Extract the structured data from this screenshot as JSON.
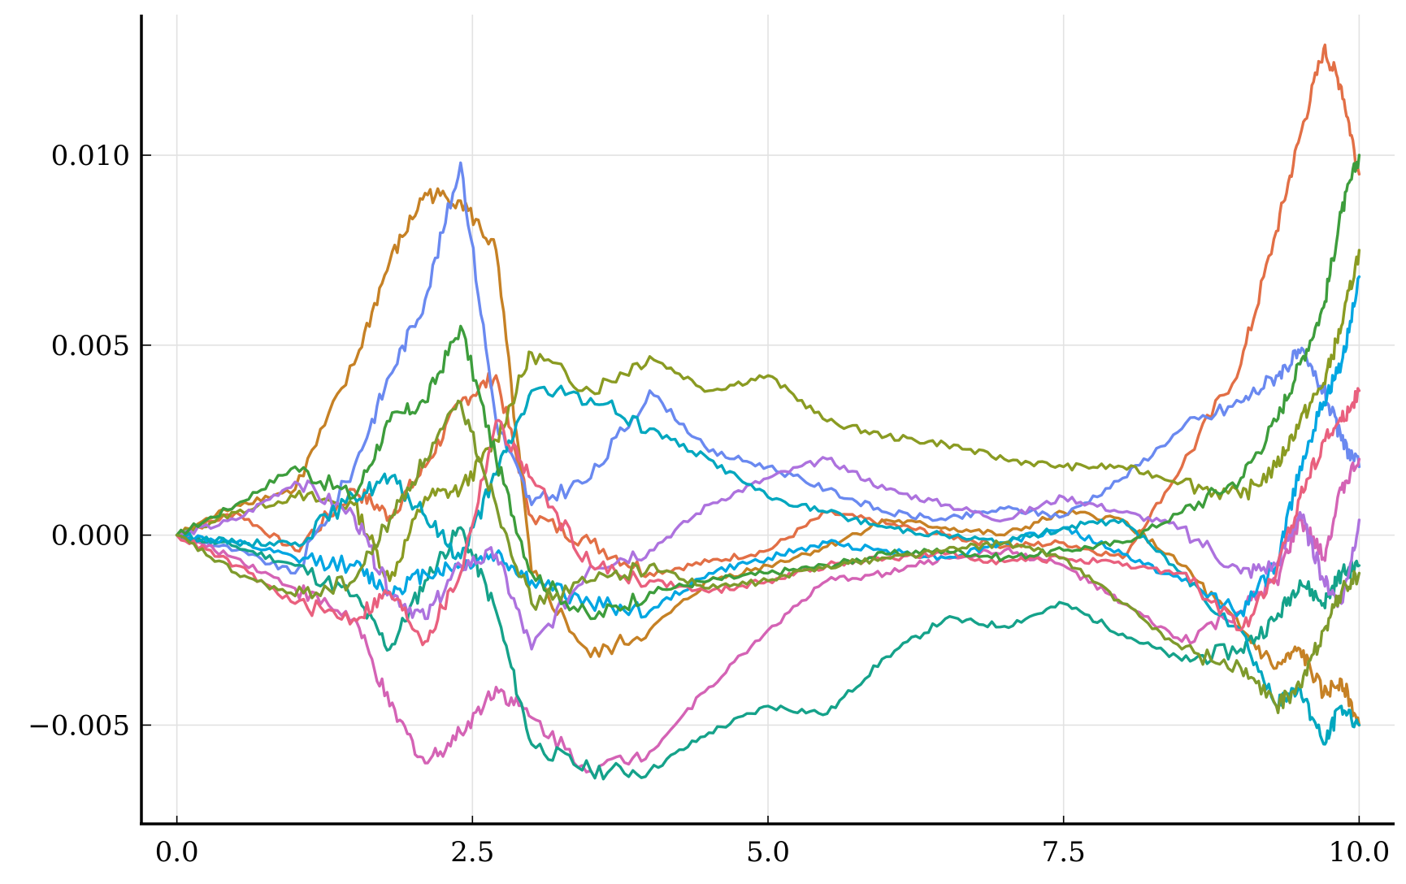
{
  "chart_data": {
    "type": "line",
    "title": "",
    "xlabel": "",
    "ylabel": "",
    "xlim": [
      -0.3,
      10.3
    ],
    "ylim": [
      -0.0076,
      0.0137
    ],
    "grid": true,
    "legend": "none",
    "x_ticks": [
      {
        "value": 0.0,
        "label": "0.0"
      },
      {
        "value": 2.5,
        "label": "2.5"
      },
      {
        "value": 5.0,
        "label": "5.0"
      },
      {
        "value": 7.5,
        "label": "7.5"
      },
      {
        "value": 10.0,
        "label": "10.0"
      }
    ],
    "y_ticks": [
      {
        "value": -0.005,
        "label": "−0.005"
      },
      {
        "value": 0.0,
        "label": "0.000"
      },
      {
        "value": 0.005,
        "label": "0.005"
      },
      {
        "value": 0.01,
        "label": "0.010"
      }
    ],
    "x": [
      0.0,
      0.5,
      1.0,
      1.5,
      1.8,
      2.1,
      2.4,
      2.7,
      3.0,
      3.5,
      4.0,
      4.5,
      5.0,
      5.5,
      6.0,
      6.5,
      7.0,
      7.5,
      8.0,
      8.5,
      9.0,
      9.3,
      9.5,
      9.7,
      9.85,
      10.0
    ],
    "series": [
      {
        "color": "#e26f46",
        "values": [
          0.0,
          0.0006,
          -0.0004,
          0.0012,
          0.0005,
          0.0018,
          0.0035,
          0.0042,
          0.0005,
          -0.0002,
          -0.001,
          -0.0007,
          -0.0004,
          0.0006,
          0.0003,
          0.0,
          -0.0003,
          -0.0002,
          -0.0006,
          0.0018,
          0.0045,
          0.008,
          0.0105,
          0.0128,
          0.0118,
          0.0095
        ]
      },
      {
        "color": "#c68125",
        "values": [
          0.0,
          0.0008,
          0.0012,
          0.0045,
          0.0072,
          0.009,
          0.0088,
          0.0075,
          -0.001,
          -0.0032,
          -0.0025,
          -0.0012,
          -0.0008,
          -0.0003,
          0.0004,
          0.0002,
          0.0,
          0.0006,
          0.0004,
          -0.0008,
          -0.0025,
          -0.0035,
          -0.003,
          -0.0042,
          -0.0038,
          -0.005
        ]
      },
      {
        "color": "#6a89f0",
        "values": [
          0.0,
          -0.0004,
          -0.001,
          0.0018,
          0.0042,
          0.0062,
          0.0098,
          0.003,
          0.0008,
          0.0015,
          0.0038,
          0.0022,
          0.0018,
          0.0012,
          0.0006,
          0.0004,
          0.0007,
          0.0005,
          0.0015,
          0.0028,
          0.0035,
          0.0042,
          0.0048,
          0.0038,
          0.0025,
          0.0018
        ]
      },
      {
        "color": "#d463b5",
        "values": [
          0.0,
          -0.0006,
          -0.0014,
          -0.0022,
          -0.0045,
          -0.006,
          -0.0052,
          -0.004,
          -0.0048,
          -0.0062,
          -0.0057,
          -0.004,
          -0.0025,
          -0.0012,
          -0.001,
          -0.0006,
          -0.0004,
          -0.0008,
          -0.0018,
          -0.0028,
          -0.002,
          -0.0012,
          0.0004,
          -0.0006,
          0.0012,
          0.002
        ]
      },
      {
        "color": "#15a28a",
        "values": [
          0.0,
          -0.0003,
          -0.0008,
          -0.0016,
          -0.003,
          -0.0012,
          0.0002,
          -0.002,
          -0.0055,
          -0.0062,
          -0.0062,
          -0.0052,
          -0.0045,
          -0.0047,
          -0.0032,
          -0.0022,
          -0.0024,
          -0.0018,
          -0.0026,
          -0.0033,
          -0.003,
          -0.0022,
          -0.0012,
          -0.0018,
          -0.001,
          -0.0008
        ]
      },
      {
        "color": "#00a6e2",
        "values": [
          0.0,
          -0.0002,
          -0.0006,
          -0.0008,
          -0.0015,
          -0.001,
          -0.0008,
          -0.0005,
          -0.0012,
          -0.0018,
          -0.002,
          -0.001,
          -0.0006,
          -0.0002,
          -0.0004,
          -0.0006,
          -0.0002,
          0.0002,
          -0.0005,
          -0.0012,
          -0.002,
          -0.0008,
          0.0018,
          0.0035,
          0.0045,
          0.0068
        ]
      },
      {
        "color": "#8a9b22",
        "values": [
          0.0,
          0.0006,
          0.001,
          0.0008,
          -0.0012,
          0.001,
          0.0012,
          0.0025,
          0.0048,
          0.0038,
          0.0047,
          0.0038,
          0.0042,
          0.003,
          0.0026,
          0.0024,
          0.002,
          0.0018,
          0.0018,
          0.0014,
          0.001,
          0.0018,
          0.003,
          0.004,
          0.0055,
          0.0075
        ]
      },
      {
        "color": "#ad72de",
        "values": [
          0.0,
          0.0004,
          0.0014,
          0.0005,
          -0.0015,
          -0.0022,
          -0.0008,
          -0.0005,
          -0.003,
          -0.0008,
          -0.0004,
          0.0008,
          0.0015,
          0.002,
          0.0012,
          0.0008,
          0.0004,
          0.001,
          0.0006,
          0.0002,
          -0.001,
          -0.0008,
          0.0006,
          -0.0012,
          -0.0018,
          0.0004
        ]
      },
      {
        "color": "#00a7bf",
        "values": [
          0.0,
          -0.0002,
          -0.0002,
          0.001,
          0.0015,
          0.0005,
          -0.0006,
          0.0016,
          0.0038,
          0.0036,
          0.0028,
          0.002,
          0.001,
          0.0006,
          0.0002,
          0.0,
          -0.0002,
          0.0002,
          0.0004,
          -0.001,
          -0.0025,
          -0.0045,
          -0.004,
          -0.0055,
          -0.0045,
          -0.005
        ]
      },
      {
        "color": "#e9607e",
        "values": [
          0.0,
          -0.0008,
          -0.0018,
          -0.0022,
          -0.0015,
          -0.0028,
          -0.001,
          0.003,
          0.0015,
          -0.0008,
          -0.0012,
          -0.0015,
          -0.0012,
          -0.0008,
          -0.0006,
          -0.0005,
          -0.0007,
          -0.0006,
          -0.0008,
          -0.001,
          -0.0025,
          -0.001,
          0.001,
          0.0025,
          0.003,
          0.0038
        ]
      },
      {
        "color": "#3d9d3c",
        "values": [
          0.0,
          0.0008,
          0.0018,
          0.001,
          0.003,
          0.0035,
          0.0055,
          0.002,
          -0.001,
          -0.0022,
          -0.0015,
          -0.0012,
          -0.001,
          -0.0008,
          -0.0005,
          -0.0004,
          -0.0006,
          -0.0004,
          -0.0002,
          0.0006,
          0.0015,
          0.003,
          0.0045,
          0.006,
          0.0085,
          0.01
        ]
      },
      {
        "color": "#7e9a2c",
        "values": [
          0.0,
          -0.001,
          -0.0016,
          -0.0012,
          0.0004,
          0.002,
          0.0035,
          0.0008,
          -0.0018,
          -0.0012,
          -0.0008,
          -0.0014,
          -0.0012,
          -0.0008,
          -0.0006,
          -0.0004,
          -0.0002,
          -0.0006,
          -0.0018,
          -0.003,
          -0.0035,
          -0.0045,
          -0.004,
          -0.0025,
          -0.0015,
          -0.001
        ]
      }
    ]
  }
}
